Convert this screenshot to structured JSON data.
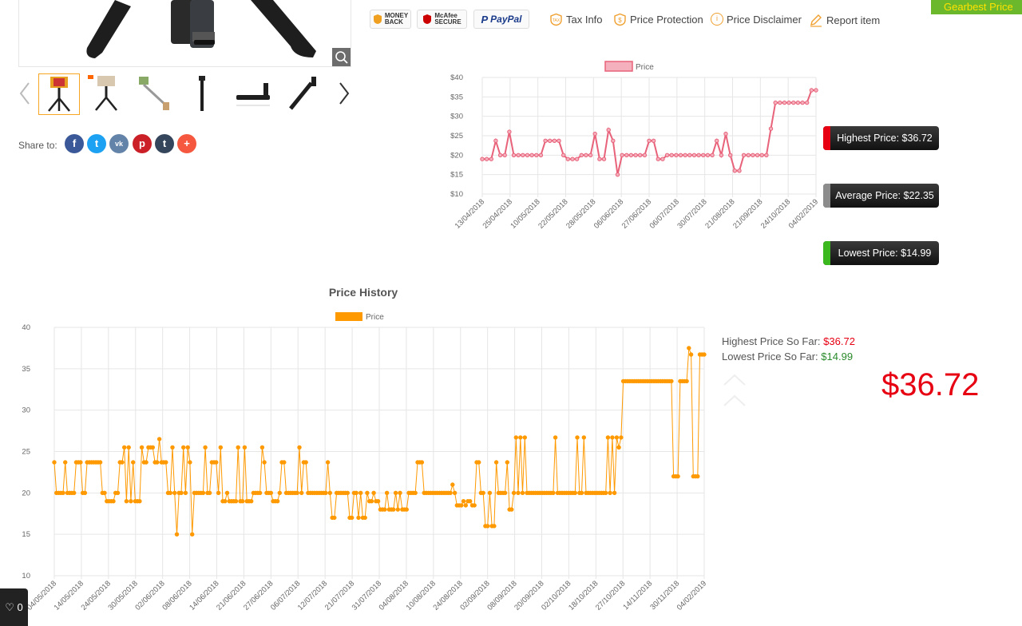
{
  "header": {
    "gearbest_price_label": "Gearbest Price"
  },
  "share": {
    "label": "Share to:",
    "networks": [
      "f",
      "t",
      "vk",
      "p",
      "t",
      "+"
    ]
  },
  "badges": {
    "money_back": [
      "MONEY",
      "BACK"
    ],
    "mcafee": [
      "McAfee",
      "SECURE"
    ],
    "paypal": "PayPal"
  },
  "links": {
    "tax_info": "Tax Info",
    "price_protection": "Price Protection",
    "price_disclaimer": "Price Disclaimer",
    "report_item": "Report item"
  },
  "stats": {
    "highest": "Highest Price: $36.72",
    "average": "Average Price: $22.35",
    "lowest": "Lowest Price: $14.99",
    "colors": {
      "highest": "#e60012",
      "average": "#8c8c8c",
      "lowest": "#3cb81f"
    }
  },
  "summary": {
    "highest_label": "Highest Price So Far:",
    "highest_value": "$36.72",
    "lowest_label": "Lowest Price So Far:",
    "lowest_value": "$14.99",
    "current_price": "$36.72"
  },
  "wishlist": {
    "count": "0"
  },
  "chart_data": [
    {
      "type": "line",
      "title": "",
      "legend": "Price",
      "legend_position": "top",
      "color": "#e8627a",
      "y_tick_labels": [
        "$40",
        "$35",
        "$30",
        "$25",
        "$20",
        "$15",
        "$10"
      ],
      "ylim": [
        10,
        40
      ],
      "x_tick_labels": [
        "13/04/2018",
        "25/04/2018",
        "10/05/2018",
        "22/05/2018",
        "28/05/2018",
        "06/06/2018",
        "27/06/2018",
        "06/07/2018",
        "30/07/2018",
        "21/08/2018",
        "21/09/2018",
        "24/10/2018",
        "04/02/2019"
      ],
      "values": [
        19,
        19,
        19,
        23.7,
        20,
        20,
        26,
        20,
        20,
        20,
        20,
        20,
        20,
        20,
        23.7,
        23.7,
        23.7,
        23.7,
        20,
        19,
        19,
        19,
        20,
        20,
        20,
        25.5,
        19,
        19,
        26.5,
        23.7,
        15,
        20,
        20,
        20,
        20,
        20,
        20,
        23.7,
        23.7,
        19,
        19,
        20,
        20,
        20,
        20,
        20,
        20,
        20,
        20,
        20,
        20,
        20,
        23.7,
        20,
        25.5,
        20,
        16,
        16,
        20,
        20,
        20,
        20,
        20,
        20,
        26.8,
        33.5,
        33.5,
        33.5,
        33.5,
        33.5,
        33.5,
        33.5,
        33.5,
        36.72,
        36.72
      ],
      "grid": true
    },
    {
      "type": "line",
      "title": "Price History",
      "legend": "Price",
      "legend_position": "top",
      "color": "#ff9900",
      "y_tick_labels": [
        "40",
        "35",
        "30",
        "25",
        "20",
        "15",
        "10"
      ],
      "ylim": [
        10,
        40
      ],
      "x_tick_labels": [
        "04/05/2018",
        "14/05/2018",
        "24/05/2018",
        "30/05/2018",
        "02/06/2018",
        "08/06/2018",
        "14/06/2018",
        "21/06/2018",
        "27/06/2018",
        "06/07/2018",
        "12/07/2018",
        "21/07/2018",
        "31/07/2018",
        "04/08/2018",
        "10/08/2018",
        "24/08/2018",
        "02/09/2018",
        "08/09/2018",
        "20/09/2018",
        "02/10/2018",
        "18/10/2018",
        "27/10/2018",
        "14/11/2018",
        "30/11/2018",
        "04/02/2019"
      ],
      "values": [
        23.7,
        20,
        20,
        20,
        20,
        23.7,
        20,
        20,
        20,
        20,
        23.7,
        23.7,
        23.7,
        20,
        20,
        23.7,
        23.7,
        23.7,
        23.7,
        23.7,
        23.7,
        23.7,
        20,
        20,
        19,
        19,
        19,
        19,
        20,
        20,
        23.7,
        23.7,
        25.5,
        19,
        25.5,
        19,
        23.7,
        19,
        19,
        19,
        25.5,
        23.7,
        23.7,
        25.5,
        25.5,
        25.5,
        23.7,
        23.7,
        26.5,
        23.7,
        23.7,
        23.7,
        20,
        20,
        25.5,
        20,
        15,
        20,
        20,
        25.5,
        20,
        25.5,
        23.7,
        15,
        20,
        20,
        20,
        20,
        20,
        25.5,
        20,
        20,
        23.7,
        23.7,
        23.7,
        20,
        25.5,
        19,
        19,
        20,
        19,
        19,
        19,
        19,
        25.5,
        19,
        19,
        25.5,
        19,
        19,
        19,
        20,
        20,
        20,
        20,
        25.5,
        23.7,
        20,
        20,
        20,
        19,
        19,
        19,
        20,
        23.7,
        23.7,
        20,
        20,
        20,
        20,
        20,
        20,
        25.5,
        20,
        23.7,
        23.7,
        20,
        20,
        20,
        20,
        20,
        20,
        20,
        20,
        20,
        23.7,
        20,
        17,
        17,
        20,
        20,
        20,
        20,
        20,
        20,
        17,
        17,
        20,
        20,
        17,
        20,
        17,
        17,
        20,
        19,
        19,
        20,
        19,
        19,
        18,
        18,
        18,
        20,
        18,
        18,
        18,
        20,
        18,
        20,
        18,
        18,
        18,
        20,
        20,
        20,
        20,
        23.7,
        23.7,
        23.7,
        20,
        20,
        20,
        20,
        20,
        20,
        20,
        20,
        20,
        20,
        20,
        20,
        20,
        21,
        20,
        18.5,
        18.5,
        18.5,
        19,
        18.5,
        19,
        19,
        18.5,
        18.5,
        23.7,
        23.7,
        20,
        20,
        16,
        16,
        20,
        16,
        16,
        23.7,
        20,
        20,
        20,
        20,
        23.7,
        18,
        18,
        20,
        26.7,
        20,
        26.7,
        20,
        26.7,
        20,
        20,
        20,
        20,
        20,
        20,
        20,
        20,
        20,
        20,
        20,
        20,
        20,
        26.7,
        20,
        20,
        20,
        20,
        20,
        20,
        20,
        20,
        20,
        26.7,
        20,
        20,
        26.7,
        20,
        20,
        20,
        20,
        20,
        20,
        20,
        20,
        20,
        20,
        26.7,
        20,
        26.7,
        20,
        26.7,
        25.5,
        26.7,
        33.5,
        33.5,
        33.5,
        33.5,
        33.5,
        33.5,
        33.5,
        33.5,
        33.5,
        33.5,
        33.5,
        33.5,
        33.5,
        33.5,
        33.5,
        33.5,
        33.5,
        33.5,
        33.5,
        33.5,
        33.5,
        33.5,
        33.5,
        22,
        22,
        22,
        33.5,
        33.5,
        33.5,
        33.5,
        37.5,
        36.72,
        22,
        22,
        22,
        36.72,
        36.72,
        36.72
      ],
      "grid": true
    }
  ]
}
